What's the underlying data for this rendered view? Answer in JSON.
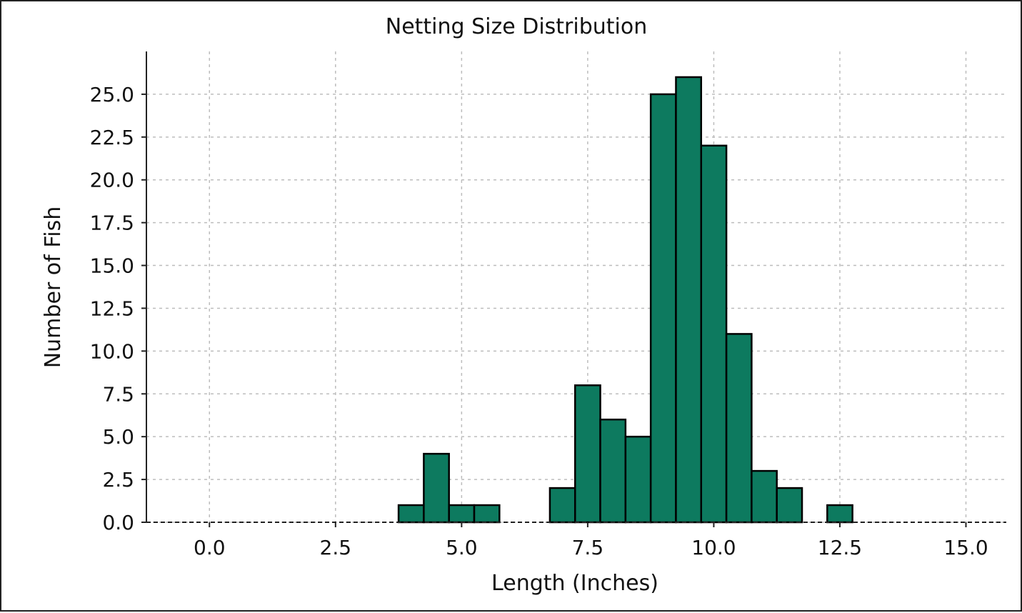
{
  "chart_data": {
    "type": "bar",
    "title": "Netting Size Distribution",
    "xlabel": "Length (Inches)",
    "ylabel": "Number of Fish",
    "xlim": [
      -1.25,
      15.8
    ],
    "ylim": [
      0,
      27.5
    ],
    "xticks": [
      "0.0",
      "2.5",
      "5.0",
      "7.5",
      "10.0",
      "12.5",
      "15.0"
    ],
    "xtick_values": [
      0,
      2.5,
      5,
      7.5,
      10,
      12.5,
      15
    ],
    "yticks": [
      "0.0",
      "2.5",
      "5.0",
      "7.5",
      "10.0",
      "12.5",
      "15.0",
      "17.5",
      "20.0",
      "22.5",
      "25.0"
    ],
    "ytick_values": [
      0,
      2.5,
      5,
      7.5,
      10,
      12.5,
      15,
      17.5,
      20,
      22.5,
      25
    ],
    "bin_width": 0.5,
    "bins": [
      {
        "start": 3.75,
        "count": 1
      },
      {
        "start": 4.25,
        "count": 4
      },
      {
        "start": 4.75,
        "count": 1
      },
      {
        "start": 5.25,
        "count": 1
      },
      {
        "start": 6.75,
        "count": 2
      },
      {
        "start": 7.25,
        "count": 8
      },
      {
        "start": 7.75,
        "count": 6
      },
      {
        "start": 8.25,
        "count": 5
      },
      {
        "start": 8.75,
        "count": 25
      },
      {
        "start": 9.25,
        "count": 26
      },
      {
        "start": 9.75,
        "count": 22
      },
      {
        "start": 10.25,
        "count": 11
      },
      {
        "start": 10.75,
        "count": 3
      },
      {
        "start": 11.25,
        "count": 2
      },
      {
        "start": 12.25,
        "count": 1
      }
    ],
    "bar_color": "#0d7a5f",
    "grid": true
  }
}
